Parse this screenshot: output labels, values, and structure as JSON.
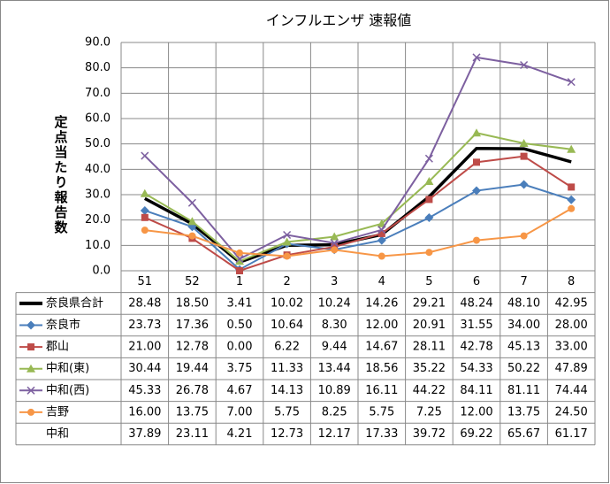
{
  "chart_data": {
    "type": "line",
    "title": "インフルエンザ 速報値",
    "y_label": "定点当たり報告数",
    "categories": [
      "51",
      "52",
      "1",
      "2",
      "3",
      "4",
      "5",
      "6",
      "7",
      "8"
    ],
    "ylim": [
      0,
      90
    ],
    "yticks": [
      {
        "value": 0,
        "label": "0.0"
      },
      {
        "value": 10,
        "label": "10.0"
      },
      {
        "value": 20,
        "label": "20.0"
      },
      {
        "value": 30,
        "label": "30.0"
      },
      {
        "value": 40,
        "label": "40.0"
      },
      {
        "value": 50,
        "label": "50.0"
      },
      {
        "value": 60,
        "label": "60.0"
      },
      {
        "value": 70,
        "label": "70.0"
      },
      {
        "value": 80,
        "label": "80.0"
      },
      {
        "value": 90,
        "label": "90.0"
      }
    ],
    "grid": true,
    "series": [
      {
        "name": "奈良県合計",
        "color": "#000000",
        "marker": "none",
        "values": [
          28.48,
          18.5,
          3.41,
          10.02,
          10.24,
          14.26,
          29.21,
          48.24,
          48.1,
          42.95
        ],
        "value_labels": [
          "28.48",
          "18.50",
          "3.41",
          "10.02",
          "10.24",
          "14.26",
          "29.21",
          "48.24",
          "48.10",
          "42.95"
        ]
      },
      {
        "name": "奈良市",
        "color": "#4a7ebb",
        "marker": "diamond",
        "values": [
          23.73,
          17.36,
          0.5,
          10.64,
          8.3,
          12,
          20.91,
          31.55,
          34,
          28
        ],
        "value_labels": [
          "23.73",
          "17.36",
          "0.50",
          "10.64",
          "8.30",
          "12.00",
          "20.91",
          "31.55",
          "34.00",
          "28.00"
        ]
      },
      {
        "name": "郡山",
        "color": "#be4b48",
        "marker": "square",
        "values": [
          21,
          12.78,
          0,
          6.22,
          9.44,
          14.67,
          28.11,
          42.78,
          45.13,
          33
        ],
        "value_labels": [
          "21.00",
          "12.78",
          "0.00",
          "6.22",
          "9.44",
          "14.67",
          "28.11",
          "42.78",
          "45.13",
          "33.00"
        ]
      },
      {
        "name": "中和(東)",
        "color": "#98b954",
        "marker": "triangle",
        "values": [
          30.44,
          19.44,
          3.75,
          11.33,
          13.44,
          18.56,
          35.22,
          54.33,
          50.22,
          47.89
        ],
        "value_labels": [
          "30.44",
          "19.44",
          "3.75",
          "11.33",
          "13.44",
          "18.56",
          "35.22",
          "54.33",
          "50.22",
          "47.89"
        ]
      },
      {
        "name": "中和(西)",
        "color": "#7d60a0",
        "marker": "x",
        "values": [
          45.33,
          26.78,
          4.67,
          14.13,
          10.89,
          16.11,
          44.22,
          84.11,
          81.11,
          74.44
        ],
        "value_labels": [
          "45.33",
          "26.78",
          "4.67",
          "14.13",
          "10.89",
          "16.11",
          "44.22",
          "84.11",
          "81.11",
          "74.44"
        ]
      },
      {
        "name": "吉野",
        "color": "#f79646",
        "marker": "circle",
        "values": [
          16,
          13.75,
          7,
          5.75,
          8.25,
          5.75,
          7.25,
          12,
          13.75,
          24.5
        ],
        "value_labels": [
          "16.00",
          "13.75",
          "7.00",
          "5.75",
          "8.25",
          "5.75",
          "7.25",
          "12.00",
          "13.75",
          "24.50"
        ]
      },
      {
        "name": "中和",
        "values": [
          37.89,
          23.11,
          4.21,
          12.73,
          12.17,
          17.33,
          39.72,
          69.22,
          65.67,
          61.17
        ],
        "value_labels": [
          "37.89",
          "23.11",
          "4.21",
          "12.73",
          "12.17",
          "17.33",
          "39.72",
          "69.22",
          "65.67",
          "61.17"
        ]
      }
    ]
  }
}
